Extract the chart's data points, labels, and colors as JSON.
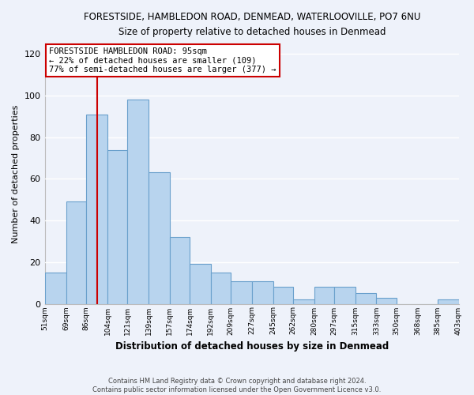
{
  "title": "FORESTSIDE, HAMBLEDON ROAD, DENMEAD, WATERLOOVILLE, PO7 6NU",
  "subtitle": "Size of property relative to detached houses in Denmead",
  "xlabel": "Distribution of detached houses by size in Denmead",
  "ylabel": "Number of detached properties",
  "bar_color": "#b8d4ee",
  "bar_edge_color": "#6aa0cc",
  "background_color": "#eef2fa",
  "grid_color": "#ffffff",
  "bins": [
    51,
    69,
    86,
    104,
    121,
    139,
    157,
    174,
    192,
    209,
    227,
    245,
    262,
    280,
    297,
    315,
    333,
    350,
    368,
    385,
    403
  ],
  "values": [
    15,
    49,
    91,
    74,
    98,
    63,
    32,
    19,
    15,
    11,
    11,
    8,
    2,
    8,
    8,
    5,
    3,
    0,
    0,
    2
  ],
  "tick_labels": [
    "51sqm",
    "69sqm",
    "86sqm",
    "104sqm",
    "121sqm",
    "139sqm",
    "157sqm",
    "174sqm",
    "192sqm",
    "209sqm",
    "227sqm",
    "245sqm",
    "262sqm",
    "280sqm",
    "297sqm",
    "315sqm",
    "333sqm",
    "350sqm",
    "368sqm",
    "385sqm",
    "403sqm"
  ],
  "ylim": [
    0,
    125
  ],
  "yticks": [
    0,
    20,
    40,
    60,
    80,
    100,
    120
  ],
  "vline_x": 95,
  "vline_color": "#cc0000",
  "annotation_title": "FORESTSIDE HAMBLEDON ROAD: 95sqm",
  "annotation_line1": "← 22% of detached houses are smaller (109)",
  "annotation_line2": "77% of semi-detached houses are larger (377) →",
  "annotation_box_edge": "#cc0000",
  "footer_line1": "Contains HM Land Registry data © Crown copyright and database right 2024.",
  "footer_line2": "Contains public sector information licensed under the Open Government Licence v3.0."
}
